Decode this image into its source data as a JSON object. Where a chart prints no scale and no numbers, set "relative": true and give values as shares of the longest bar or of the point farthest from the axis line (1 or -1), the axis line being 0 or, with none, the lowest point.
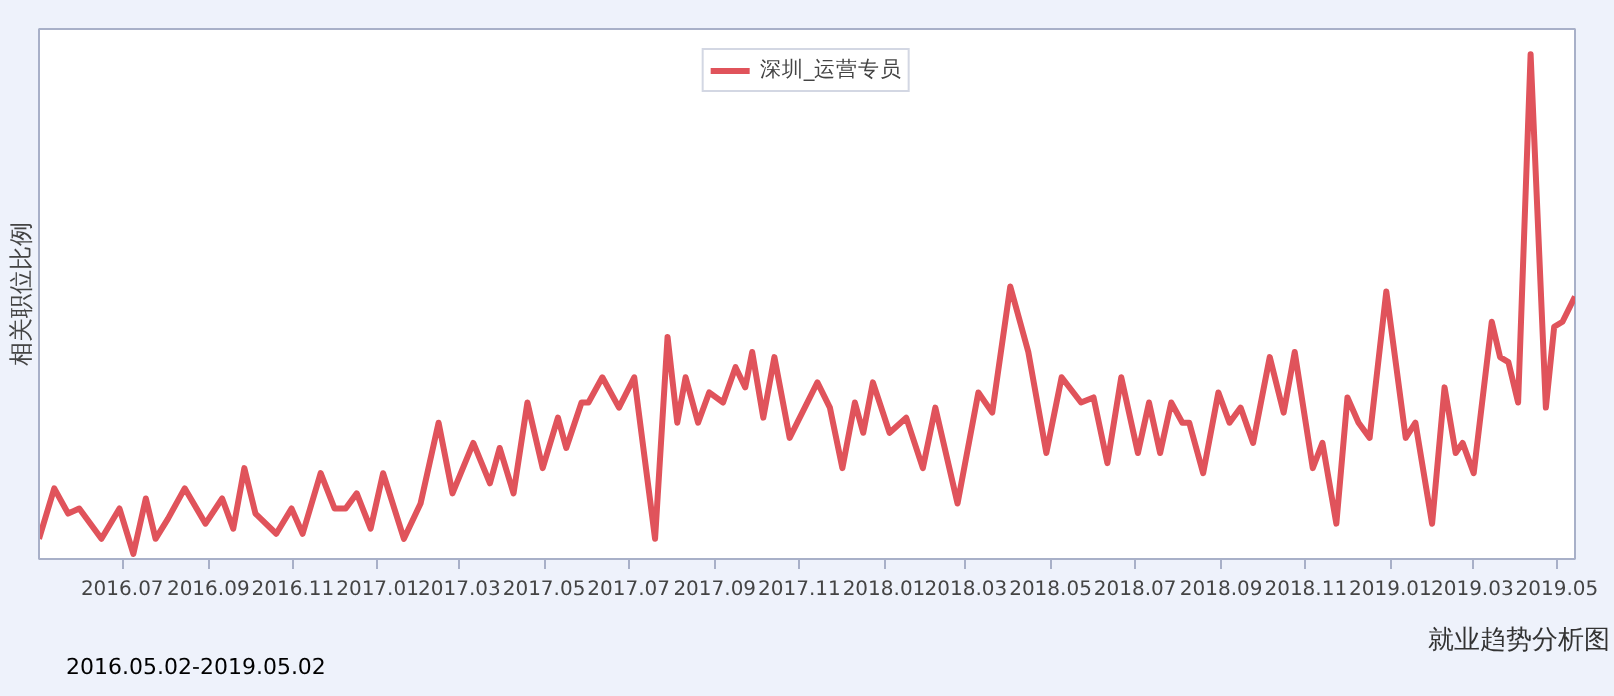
{
  "chart_data": {
    "type": "line",
    "ylabel": "相关职位比例",
    "relative": true,
    "tick_labels": "x",
    "legend": "top",
    "grid": false,
    "marker": "none",
    "line_style": "solid",
    "annotations": [
      "就业趋势分析图",
      "2016.05.02-2019.05.02"
    ],
    "xlim": [
      "2016-05-02",
      "2019-05-14"
    ],
    "xticks": [
      {
        "value": "2016-07-01",
        "label": "2016.07"
      },
      {
        "value": "2016-09-01",
        "label": "2016.09"
      },
      {
        "value": "2016-11-01",
        "label": "2016.11"
      },
      {
        "value": "2017-01-01",
        "label": "2017.01"
      },
      {
        "value": "2017-03-01",
        "label": "2017.03"
      },
      {
        "value": "2017-05-01",
        "label": "2017.05"
      },
      {
        "value": "2017-07-01",
        "label": "2017.07"
      },
      {
        "value": "2017-09-01",
        "label": "2017.09"
      },
      {
        "value": "2017-11-01",
        "label": "2017.11"
      },
      {
        "value": "2018-01-01",
        "label": "2018.01"
      },
      {
        "value": "2018-03-01",
        "label": "2018.03"
      },
      {
        "value": "2018-05-01",
        "label": "2018.05"
      },
      {
        "value": "2018-07-01",
        "label": "2018.07"
      },
      {
        "value": "2018-09-01",
        "label": "2018.09"
      },
      {
        "value": "2018-11-01",
        "label": "2018.11"
      },
      {
        "value": "2019-01-01",
        "label": "2019.01"
      },
      {
        "value": "2019-03-01",
        "label": "2019.03"
      },
      {
        "value": "2019-05-01",
        "label": "2019.05"
      }
    ],
    "x": [
      "2016-05-02",
      "2016-05-13",
      "2016-05-23",
      "2016-05-31",
      "2016-06-16",
      "2016-06-29",
      "2016-07-09",
      "2016-07-18",
      "2016-07-25",
      "2016-08-03",
      "2016-08-15",
      "2016-08-30",
      "2016-09-11",
      "2016-09-19",
      "2016-09-27",
      "2016-10-05",
      "2016-10-20",
      "2016-10-31",
      "2016-11-08",
      "2016-11-21",
      "2016-12-01",
      "2016-12-09",
      "2016-12-17",
      "2016-12-27",
      "2017-01-05",
      "2017-01-20",
      "2017-02-01",
      "2017-02-14",
      "2017-02-24",
      "2017-03-11",
      "2017-03-23",
      "2017-03-30",
      "2017-04-09",
      "2017-04-19",
      "2017-04-30",
      "2017-05-11",
      "2017-05-17",
      "2017-05-28",
      "2017-06-02",
      "2017-06-12",
      "2017-06-24",
      "2017-07-05",
      "2017-07-20",
      "2017-07-29",
      "2017-08-05",
      "2017-08-11",
      "2017-08-20",
      "2017-08-28",
      "2017-09-07",
      "2017-09-16",
      "2017-09-23",
      "2017-09-28",
      "2017-10-06",
      "2017-10-14",
      "2017-10-25",
      "2017-11-14",
      "2017-11-23",
      "2017-12-02",
      "2017-12-11",
      "2017-12-17",
      "2017-12-24",
      "2018-01-05",
      "2018-01-17",
      "2018-01-29",
      "2018-02-07",
      "2018-02-23",
      "2018-03-10",
      "2018-03-20",
      "2018-04-02",
      "2018-04-15",
      "2018-04-28",
      "2018-05-09",
      "2018-05-23",
      "2018-06-01",
      "2018-06-11",
      "2018-06-21",
      "2018-07-03",
      "2018-07-11",
      "2018-07-19",
      "2018-07-27",
      "2018-08-04",
      "2018-08-09",
      "2018-08-19",
      "2018-08-30",
      "2018-09-07",
      "2018-09-15",
      "2018-09-24",
      "2018-10-06",
      "2018-10-16",
      "2018-10-24",
      "2018-11-06",
      "2018-11-13",
      "2018-11-23",
      "2018-12-01",
      "2018-12-09",
      "2018-12-17",
      "2018-12-29",
      "2019-01-12",
      "2019-01-19",
      "2019-01-31",
      "2019-02-09",
      "2019-02-17",
      "2019-02-22",
      "2019-03-02",
      "2019-03-15",
      "2019-03-21",
      "2019-03-27",
      "2019-04-03",
      "2019-04-12",
      "2019-04-23",
      "2019-04-29",
      "2019-05-05",
      "2019-05-14"
    ],
    "series": [
      {
        "name": "深圳_运营专员",
        "color": "#e0535b",
        "values": [
          0.04,
          0.14,
          0.09,
          0.1,
          0.04,
          0.1,
          0.01,
          0.12,
          0.04,
          0.08,
          0.14,
          0.07,
          0.12,
          0.06,
          0.18,
          0.09,
          0.05,
          0.1,
          0.05,
          0.17,
          0.1,
          0.1,
          0.13,
          0.06,
          0.17,
          0.04,
          0.11,
          0.27,
          0.13,
          0.23,
          0.15,
          0.22,
          0.13,
          0.31,
          0.18,
          0.28,
          0.22,
          0.31,
          0.31,
          0.36,
          0.3,
          0.36,
          0.04,
          0.44,
          0.27,
          0.36,
          0.27,
          0.33,
          0.31,
          0.38,
          0.34,
          0.41,
          0.28,
          0.4,
          0.24,
          0.35,
          0.3,
          0.18,
          0.31,
          0.25,
          0.35,
          0.25,
          0.28,
          0.18,
          0.3,
          0.11,
          0.33,
          0.29,
          0.54,
          0.41,
          0.21,
          0.36,
          0.31,
          0.32,
          0.19,
          0.36,
          0.21,
          0.31,
          0.21,
          0.31,
          0.27,
          0.27,
          0.17,
          0.33,
          0.27,
          0.3,
          0.23,
          0.4,
          0.29,
          0.41,
          0.18,
          0.23,
          0.07,
          0.32,
          0.27,
          0.24,
          0.53,
          0.24,
          0.27,
          0.07,
          0.34,
          0.21,
          0.23,
          0.17,
          0.47,
          0.4,
          0.39,
          0.31,
          1,
          0.3,
          0.46,
          0.47,
          0.52
        ]
      }
    ]
  }
}
